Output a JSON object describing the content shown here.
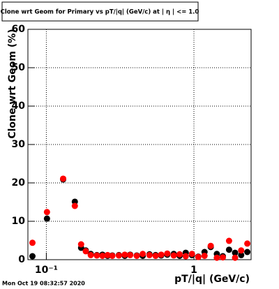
{
  "chart_data": {
    "type": "scatter",
    "title": "Clone wrt Geom for Primary vs pT/|q| (GeV/c) at | η | <= 1.0",
    "x_label": "pT/|q| (GeV/c)",
    "y_label": "Clone wrt Geom (%)",
    "timestamp": "Mon Oct 19 08:32:57 2020",
    "x": [
      0.0805,
      0.101,
      0.13,
      0.156,
      0.172,
      0.185,
      0.2,
      0.22,
      0.24,
      0.26,
      0.28,
      0.31,
      0.34,
      0.37,
      0.41,
      0.45,
      0.5,
      0.55,
      0.6,
      0.66,
      0.73,
      0.8,
      0.88,
      0.97,
      1.07,
      1.18,
      1.3,
      1.43,
      1.57,
      1.73,
      1.9,
      2.09,
      2.3
    ],
    "series": [
      {
        "color": "#000000",
        "values": [
          0.9,
          10.7,
          20.9,
          15.1,
          3.1,
          2.4,
          1.5,
          1.2,
          1.3,
          1.0,
          1.1,
          1.2,
          1.0,
          1.3,
          1.1,
          1.0,
          1.4,
          1.2,
          1.1,
          1.3,
          1.5,
          1.0,
          1.8,
          1.2,
          0.8,
          2.0,
          3.3,
          1.5,
          0.9,
          2.6,
          1.8,
          1.2,
          2.0
        ]
      },
      {
        "color": "#ff0000",
        "values": [
          4.4,
          12.4,
          21.1,
          14.0,
          4.0,
          2.2,
          1.2,
          1.1,
          1.0,
          1.2,
          1.0,
          1.1,
          1.3,
          1.2,
          1.0,
          1.5,
          1.2,
          1.0,
          1.3,
          1.6,
          1.1,
          1.4,
          0.9,
          1.5,
          0.7,
          1.0,
          3.6,
          0.5,
          0.6,
          4.9,
          0.5,
          2.4,
          4.2
        ]
      }
    ],
    "xlim": [
      0.075,
      2.44
    ],
    "x_log": true,
    "xticks": [
      {
        "value": 0.1,
        "label": "10⁻¹"
      },
      1
    ],
    "ylim": [
      0,
      60
    ],
    "yticks": [
      0,
      10,
      20,
      30,
      40,
      50,
      60
    ],
    "grid": true
  }
}
